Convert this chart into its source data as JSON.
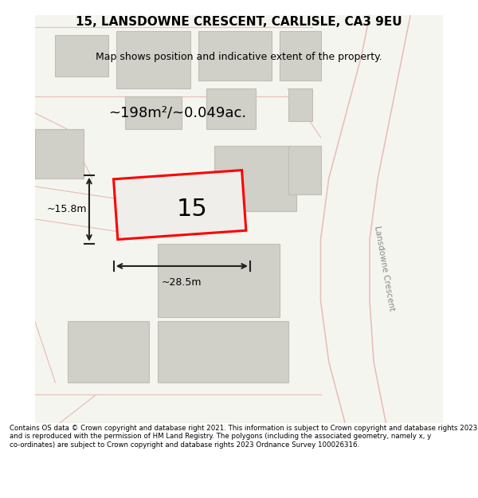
{
  "title": "15, LANSDOWNE CRESCENT, CARLISLE, CA3 9EU",
  "subtitle": "Map shows position and indicative extent of the property.",
  "footer": "Contains OS data © Crown copyright and database right 2021. This information is subject to Crown copyright and database rights 2023 and is reproduced with the permission of HM Land Registry. The polygons (including the associated geometry, namely x, y co-ordinates) are subject to Crown copyright and database rights 2023 Ordnance Survey 100026316.",
  "area_label": "~198m²/~0.049ac.",
  "width_label": "~28.5m",
  "height_label": "~15.8m",
  "plot_number": "15",
  "background_color": "#f5f5f0",
  "road_color": "#d4d0c8",
  "building_fill": "#d0cfc8",
  "building_edge": "#c0bdb4",
  "plot_fill": "#f0eeea",
  "plot_edge": "#ff0000",
  "road_line_color": "#e8c0b8",
  "road_line_color2": "#ccaaaa",
  "street_label": "Lansdowne Crescent",
  "dim_color": "#222222"
}
